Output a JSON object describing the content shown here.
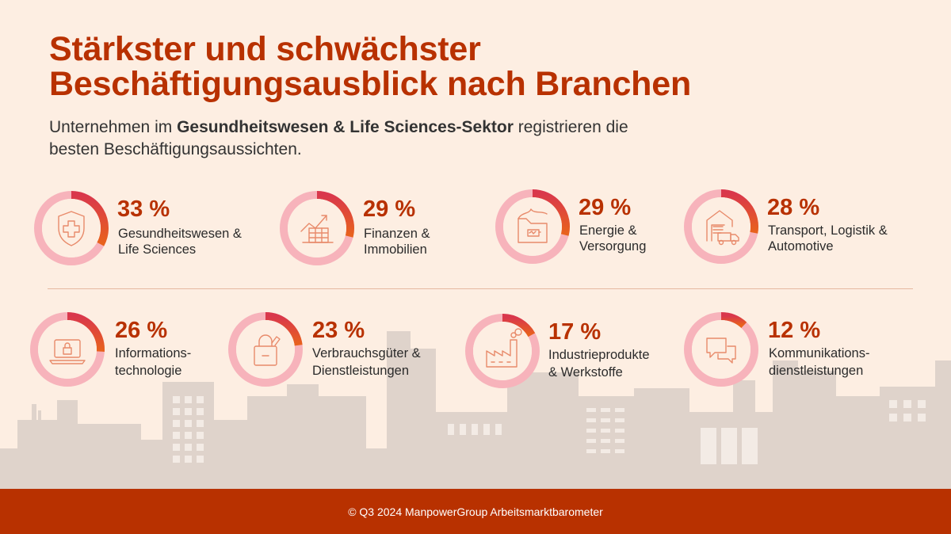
{
  "title_line1": "Stärkster und schwächster",
  "title_line2": "Beschäftigungsausblick nach Branchen",
  "subtitle_pre": "Unternehmen im ",
  "subtitle_bold": "Gesundheitswesen & Life Sciences-Sektor",
  "subtitle_post": " registrieren die",
  "subtitle_line2": "besten Beschäftigungsaussichten.",
  "footer": "© Q3 2024 ManpowerGroup Arbeitsmarktbarometer",
  "colors": {
    "background": "#fdeee2",
    "accent": "#b83100",
    "ring_base": "#f7b3bb",
    "ring_start": "#d9374c",
    "ring_end": "#e8631c",
    "skyline": "#dfd3cb"
  },
  "chart_data": {
    "type": "donut",
    "categories": [
      "Gesundheitswesen & Life Sciences",
      "Finanzen & Immobilien",
      "Energie & Versorgung",
      "Transport, Logistik & Automotive",
      "Informationstechnologie",
      "Verbrauchsgüter & Dienstleistungen",
      "Industrieprodukte & Werkstoffe",
      "Kommunikationsdienstleistungen"
    ],
    "values": [
      33,
      29,
      29,
      28,
      26,
      23,
      17,
      12
    ],
    "items": [
      {
        "value": 33,
        "pct_label": "33 %",
        "label_line1": "Gesundheitswesen &",
        "label_line2": "Life Sciences",
        "icon": "shield-cross-icon"
      },
      {
        "value": 29,
        "pct_label": "29 %",
        "label_line1": "Finanzen &",
        "label_line2": "Immobilien",
        "icon": "finance-chart-icon"
      },
      {
        "value": 29,
        "pct_label": "29 %",
        "label_line1": "Energie &",
        "label_line2": "Versorgung",
        "icon": "energy-battery-icon"
      },
      {
        "value": 28,
        "pct_label": "28 %",
        "label_line1": "Transport,  Logistik &",
        "label_line2": "Automotive",
        "icon": "warehouse-truck-icon"
      },
      {
        "value": 26,
        "pct_label": "26 %",
        "label_line1": "Informations-",
        "label_line2": "technologie",
        "icon": "laptop-lock-icon"
      },
      {
        "value": 23,
        "pct_label": "23 %",
        "label_line1": "Verbrauchsgüter &",
        "label_line2": "Dienstleistungen",
        "icon": "shopping-bag-icon"
      },
      {
        "value": 17,
        "pct_label": "17 %",
        "label_line1": "Industrieprodukte",
        "label_line2": "& Werkstoffe",
        "icon": "factory-icon"
      },
      {
        "value": 12,
        "pct_label": "12 %",
        "label_line1": "Kommunikations-",
        "label_line2": "dienstleistungen",
        "icon": "chat-bubbles-icon"
      }
    ]
  }
}
